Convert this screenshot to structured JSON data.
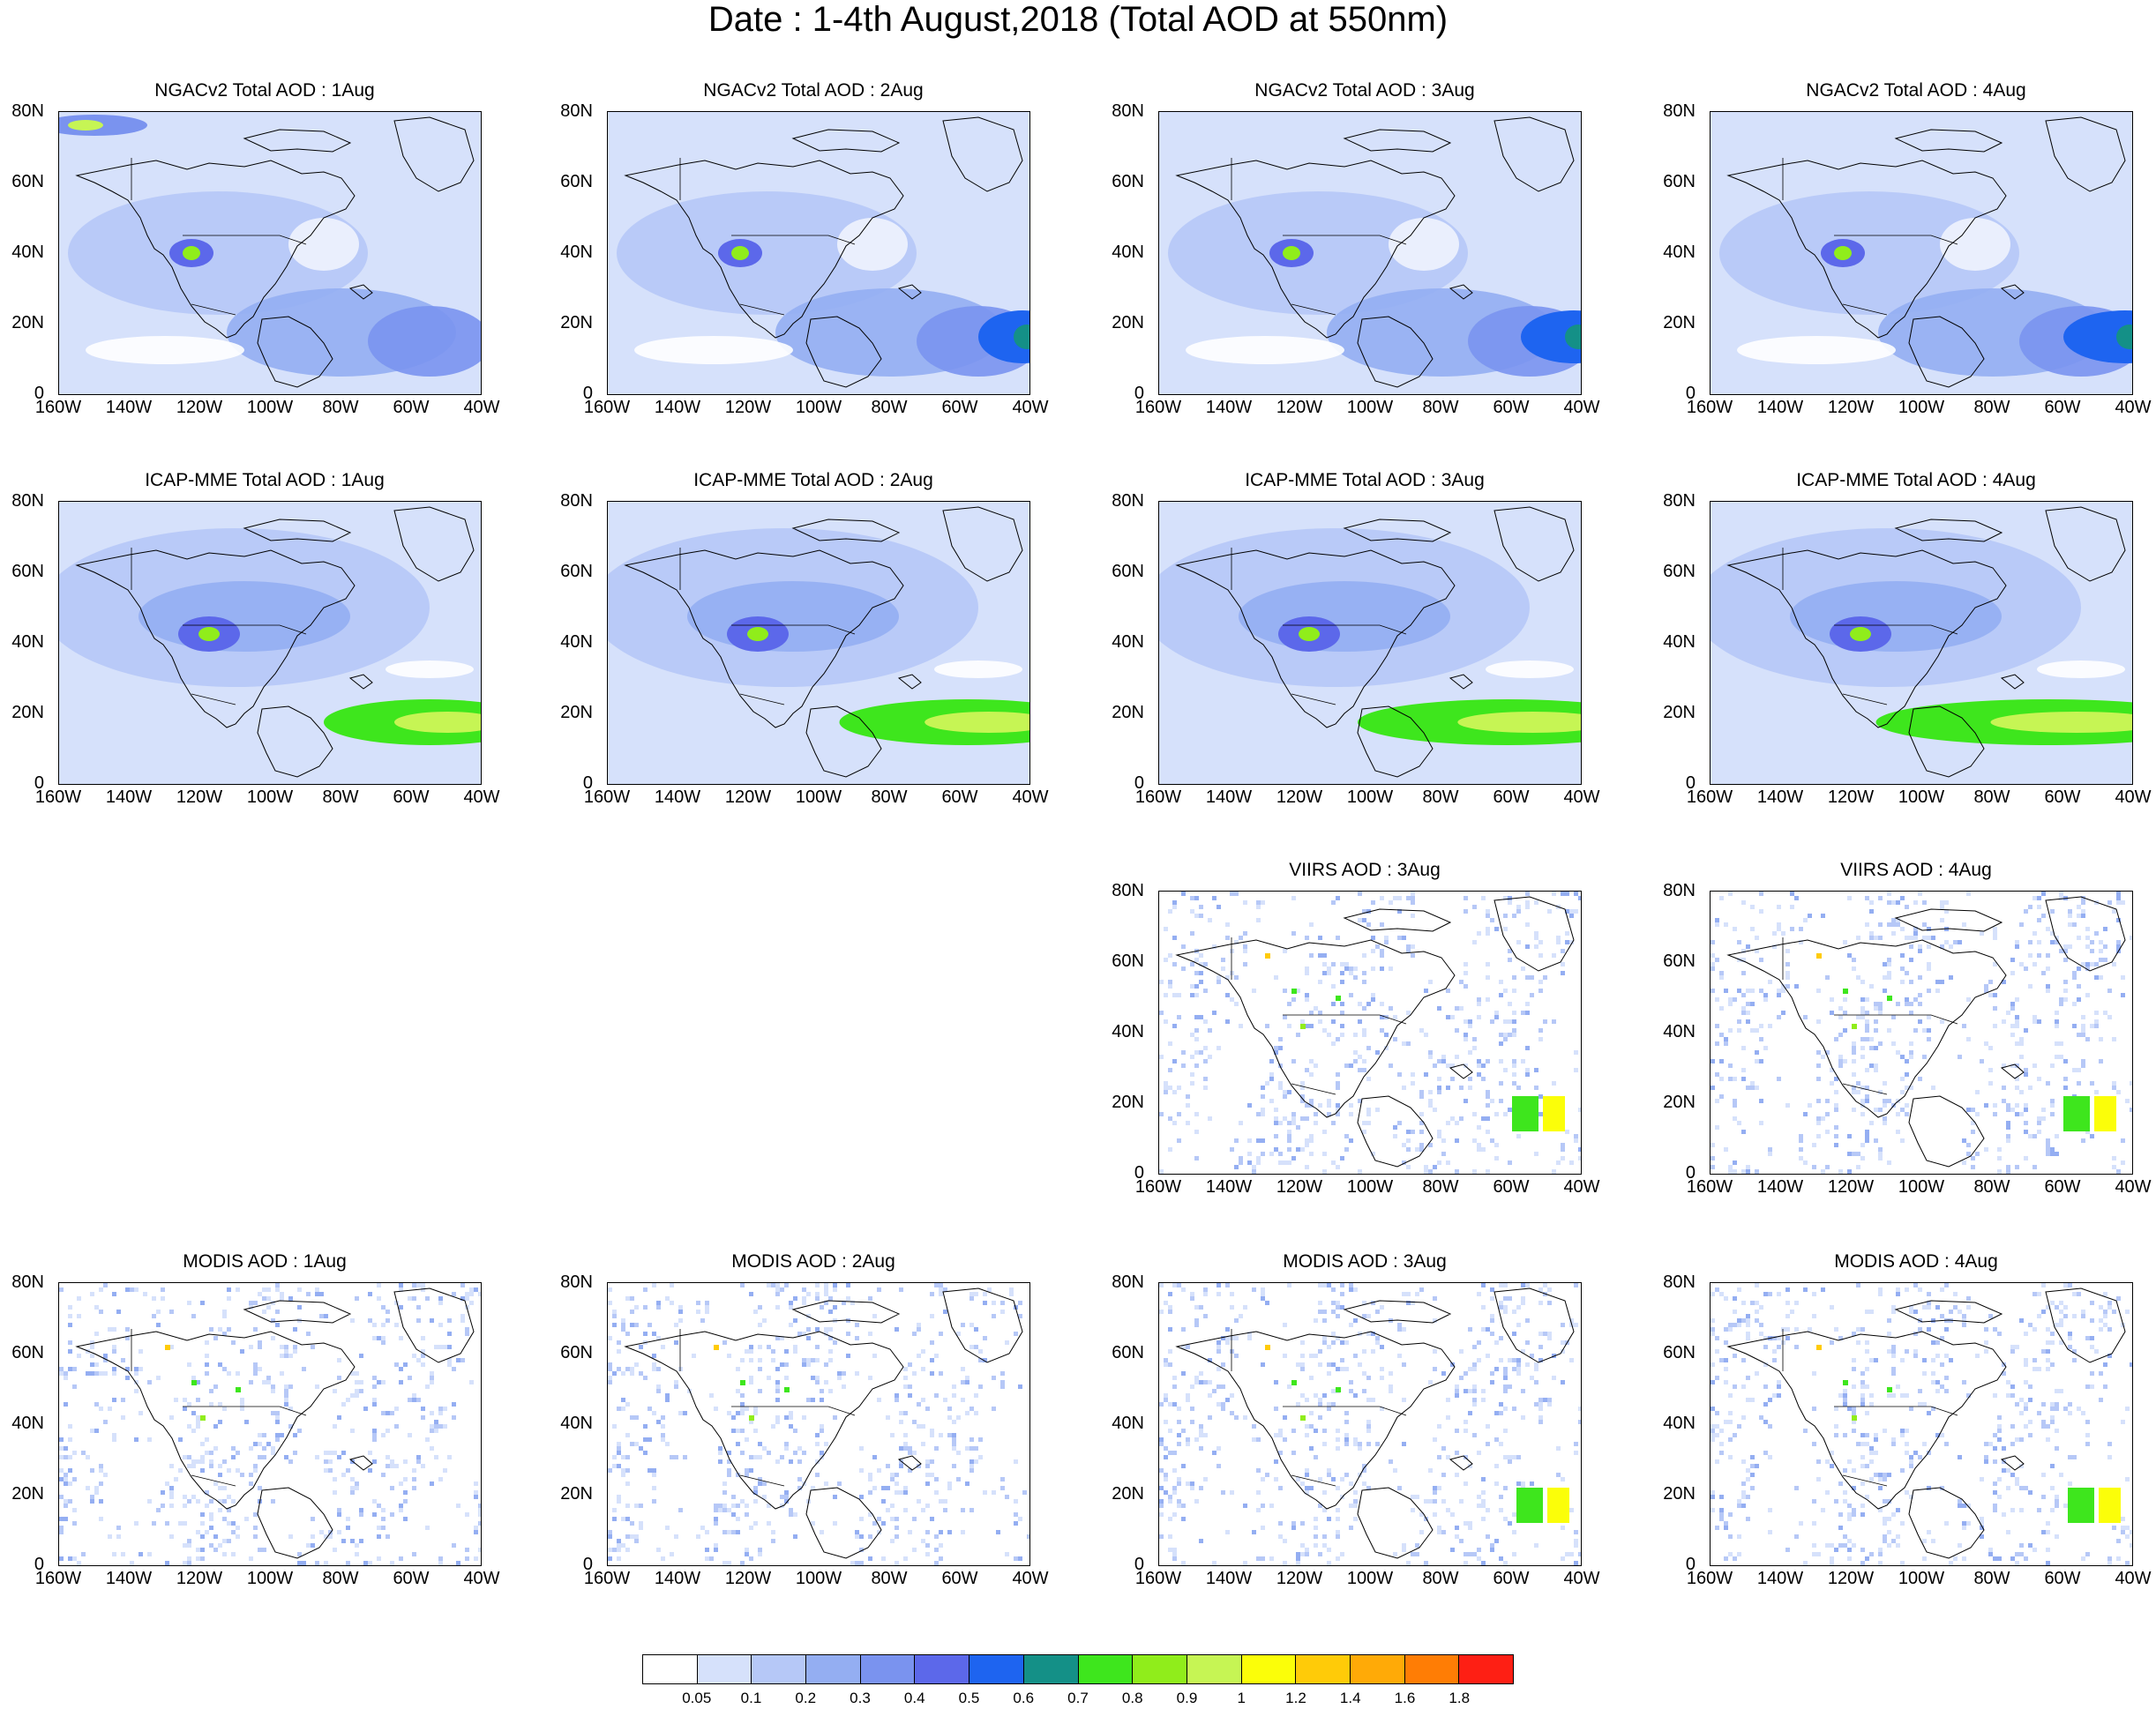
{
  "title": "Date : 1-4th August,2018 (Total AOD at 550nm)",
  "colors": {
    "c0": "#ffffff",
    "c1": "#d6e1fb",
    "c2": "#b6c8f7",
    "c3": "#94aef2",
    "c4": "#7a93ef",
    "c5": "#5c68ea",
    "c6": "#1e64f0",
    "c7": "#149087",
    "c8": "#3ee61d",
    "c9": "#90ed1b",
    "c10": "#c6f554",
    "c11": "#fbfe09",
    "c12": "#ffcb08",
    "c13": "#ffaa07",
    "c14": "#ff7d05",
    "c15": "#fe1f14"
  },
  "axes": {
    "y_ticks": [
      "80N",
      "60N",
      "40N",
      "20N",
      "0"
    ],
    "x_ticks": [
      "160W",
      "140W",
      "120W",
      "100W",
      "80W",
      "60W",
      "40W"
    ]
  },
  "panels": [
    {
      "title": "NGACv2 Total AOD : 1Aug"
    },
    {
      "title": "NGACv2 Total AOD : 2Aug"
    },
    {
      "title": "NGACv2 Total AOD : 3Aug"
    },
    {
      "title": "NGACv2 Total AOD : 4Aug"
    },
    {
      "title": "ICAP-MME Total AOD : 1Aug"
    },
    {
      "title": "ICAP-MME Total AOD : 2Aug"
    },
    {
      "title": "ICAP-MME Total AOD : 3Aug"
    },
    {
      "title": "ICAP-MME Total AOD : 4Aug"
    },
    {
      "title": "VIIRS AOD : 3Aug"
    },
    {
      "title": "VIIRS AOD : 4Aug"
    },
    {
      "title": "MODIS AOD : 1Aug"
    },
    {
      "title": "MODIS AOD : 2Aug"
    },
    {
      "title": "MODIS AOD : 3Aug"
    },
    {
      "title": "MODIS AOD : 4Aug"
    }
  ],
  "colorbar": {
    "labels": [
      "0.05",
      "0.1",
      "0.2",
      "0.3",
      "0.4",
      "0.5",
      "0.6",
      "0.7",
      "0.8",
      "0.9",
      "1",
      "1.2",
      "1.4",
      "1.6",
      "1.8"
    ],
    "colors": [
      "#ffffff",
      "#d6e1fb",
      "#b6c8f7",
      "#94aef2",
      "#7a93ef",
      "#5c68ea",
      "#1e64f0",
      "#149087",
      "#3ee61d",
      "#90ed1b",
      "#c6f554",
      "#fbfe09",
      "#ffcb08",
      "#ffaa07",
      "#ff7d05",
      "#fe1f14"
    ]
  }
}
